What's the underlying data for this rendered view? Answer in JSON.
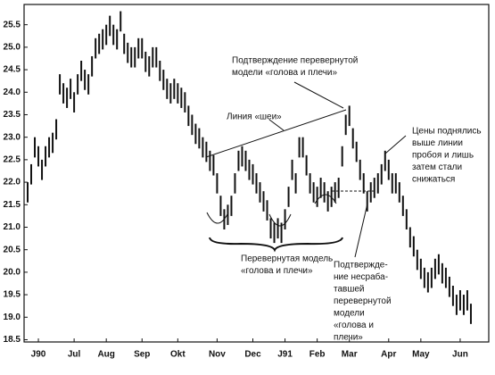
{
  "chart_data": {
    "type": "hilo",
    "color": "#111111",
    "x": [
      1,
      2,
      3,
      4,
      5,
      6,
      7,
      8,
      9,
      10,
      11,
      12,
      13,
      14,
      15,
      16,
      17,
      18,
      19,
      20,
      21,
      22,
      23,
      24,
      25,
      26,
      27,
      28,
      29,
      30,
      31,
      32,
      33,
      34,
      35,
      36,
      37,
      38,
      39,
      40,
      41,
      42,
      43,
      44,
      45,
      46,
      47,
      48,
      49,
      50,
      51,
      52,
      53,
      54,
      55,
      56,
      57,
      58,
      59,
      60,
      61,
      62,
      63,
      64,
      65,
      66,
      67,
      68,
      69,
      70,
      71,
      72,
      73,
      74,
      75,
      76,
      77,
      78,
      79,
      80,
      81,
      82,
      83,
      84,
      85,
      86,
      87,
      88,
      89,
      90,
      91,
      92,
      93,
      94,
      95,
      96,
      97,
      98,
      99,
      100,
      101,
      102,
      103,
      104,
      105,
      106,
      107,
      108,
      109,
      110,
      111,
      112,
      113,
      114,
      115,
      116,
      117,
      118,
      119,
      120,
      121,
      122,
      123,
      124,
      125
    ],
    "high": [
      22.0,
      22.4,
      23.0,
      22.8,
      22.5,
      22.8,
      23.0,
      23.1,
      23.4,
      24.4,
      24.2,
      24.1,
      24.3,
      24.0,
      24.4,
      24.7,
      24.5,
      24.4,
      24.8,
      25.2,
      25.3,
      25.4,
      25.5,
      25.7,
      25.5,
      25.4,
      25.8,
      25.3,
      25.1,
      25.0,
      25.0,
      25.2,
      25.2,
      24.9,
      24.8,
      25.0,
      25.0,
      24.7,
      24.5,
      24.3,
      24.2,
      24.3,
      24.2,
      24.1,
      24.0,
      23.7,
      23.5,
      23.3,
      23.2,
      23.0,
      22.9,
      22.7,
      22.6,
      22.2,
      21.7,
      21.4,
      21.5,
      21.7,
      22.2,
      22.7,
      22.8,
      22.7,
      22.5,
      22.4,
      22.2,
      22.0,
      21.8,
      21.6,
      21.2,
      21.1,
      21.2,
      21.1,
      21.4,
      21.9,
      22.5,
      22.2,
      23.0,
      23.0,
      22.6,
      22.2,
      22.0,
      21.9,
      22.1,
      22.0,
      21.8,
      21.9,
      22.0,
      22.1,
      22.8,
      23.5,
      23.7,
      23.2,
      22.9,
      22.5,
      22.2,
      21.8,
      22.0,
      22.1,
      22.2,
      22.4,
      22.7,
      22.5,
      22.2,
      22.2,
      22.0,
      21.7,
      21.4,
      21.0,
      20.8,
      20.5,
      20.3,
      20.1,
      20.0,
      20.1,
      20.3,
      20.4,
      20.2,
      20.1,
      19.9,
      19.7,
      19.5,
      19.6,
      19.5,
      19.6,
      19.3
    ],
    "low": [
      21.55,
      21.95,
      22.55,
      22.35,
      22.05,
      22.35,
      22.55,
      22.65,
      22.95,
      23.95,
      23.75,
      23.65,
      23.85,
      23.55,
      23.95,
      24.25,
      24.05,
      23.95,
      24.35,
      24.75,
      24.85,
      24.95,
      25.05,
      25.25,
      25.05,
      24.95,
      25.35,
      24.85,
      24.65,
      24.55,
      24.55,
      24.75,
      24.75,
      24.45,
      24.35,
      24.55,
      24.55,
      24.25,
      24.05,
      23.85,
      23.75,
      23.85,
      23.75,
      23.65,
      23.55,
      23.25,
      23.05,
      22.85,
      22.75,
      22.55,
      22.45,
      22.25,
      22.15,
      21.75,
      21.25,
      20.95,
      21.05,
      21.25,
      21.75,
      22.25,
      22.35,
      22.25,
      22.05,
      21.95,
      21.75,
      21.55,
      21.35,
      21.15,
      20.75,
      20.65,
      20.75,
      20.65,
      20.95,
      21.45,
      22.05,
      21.75,
      22.55,
      22.55,
      22.15,
      21.75,
      21.55,
      21.45,
      21.65,
      21.55,
      21.35,
      21.45,
      21.55,
      21.65,
      22.35,
      23.05,
      23.25,
      22.75,
      22.45,
      22.05,
      21.75,
      21.35,
      21.55,
      21.65,
      21.75,
      21.95,
      22.25,
      22.05,
      21.75,
      21.75,
      21.55,
      21.25,
      20.95,
      20.55,
      20.35,
      20.05,
      19.85,
      19.65,
      19.55,
      19.65,
      19.85,
      19.95,
      19.75,
      19.65,
      19.45,
      19.25,
      19.05,
      19.15,
      19.05,
      19.15,
      18.85
    ],
    "xlim": [
      0,
      130
    ],
    "xticks": [
      {
        "value": 4,
        "label": "J90"
      },
      {
        "value": 14,
        "label": "Jul"
      },
      {
        "value": 23,
        "label": "Aug"
      },
      {
        "value": 33,
        "label": "Sep"
      },
      {
        "value": 43,
        "label": "Okt"
      },
      {
        "value": 54,
        "label": "Nov"
      },
      {
        "value": 64,
        "label": "Dec"
      },
      {
        "value": 73,
        "label": "J91"
      },
      {
        "value": 82,
        "label": "Feb"
      },
      {
        "value": 91,
        "label": "Mar"
      },
      {
        "value": 102,
        "label": "Apr"
      },
      {
        "value": 111,
        "label": "May"
      },
      {
        "value": 122,
        "label": "Jun"
      }
    ],
    "ylim": [
      18.45,
      25.95
    ],
    "yticks": [
      18.5,
      {
        "value": 19,
        "label": "19.0"
      },
      19.5,
      {
        "value": 20,
        "label": "20.0"
      },
      20.5,
      {
        "value": 21,
        "label": "21.0"
      },
      21.5,
      {
        "value": 22,
        "label": "22.0"
      },
      22.5,
      {
        "value": 23,
        "label": "23.0"
      },
      23.5,
      {
        "value": 24,
        "label": "24.0"
      },
      24.5,
      {
        "value": 25,
        "label": "25.0"
      },
      25.5
    ],
    "annotations": [
      {
        "lines": [
          "Подтверждение перевернутой",
          "модели «голова и плечи»"
        ]
      },
      {
        "lines": [
          "Линия «шеи»"
        ]
      },
      {
        "lines": [
          "Цены поднялись",
          "выше линии",
          "пробоя и лишь",
          "затем стали",
          "снижаться"
        ]
      },
      {
        "lines": [
          "Перевернутая модель",
          "«голова и плечи»"
        ]
      },
      {
        "lines": [
          "Подтвержде-",
          "ние несраба-",
          "тавшей",
          "перевернутой",
          "модели",
          "«голова и",
          "плечи»"
        ]
      }
    ]
  }
}
